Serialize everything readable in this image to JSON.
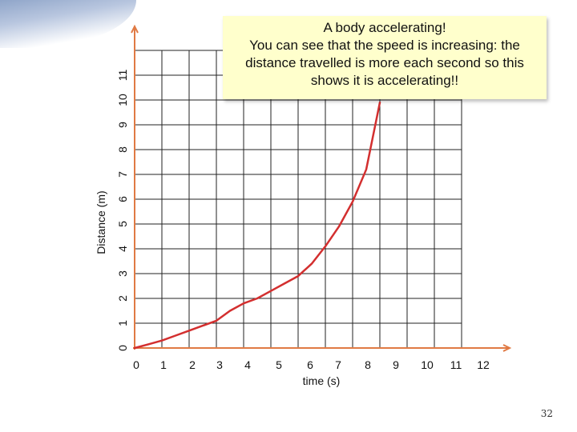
{
  "chart_data": {
    "type": "line",
    "title": "",
    "xlabel": "time (s)",
    "ylabel": "Distance (m)",
    "x_ticks": [
      "0",
      "1",
      "2",
      "3",
      "4",
      "5",
      "6",
      "7",
      "8",
      "9",
      "10",
      "11",
      "12"
    ],
    "y_ticks": [
      "0",
      "1",
      "2",
      "3",
      "4",
      "5",
      "6",
      "7",
      "8",
      "9",
      "10",
      "11"
    ],
    "xlim": [
      0,
      12
    ],
    "ylim": [
      0,
      11
    ],
    "grid": true,
    "series": [
      {
        "name": "",
        "color": "#d32f2f",
        "x": [
          0,
          0.5,
          1,
          1.5,
          2,
          2.5,
          3,
          3.5,
          4,
          4.5,
          5,
          5.5,
          6,
          6.5,
          7,
          7.5,
          8,
          8.5,
          9
        ],
        "y": [
          0,
          0.15,
          0.3,
          0.5,
          0.7,
          0.9,
          1.1,
          1.5,
          1.8,
          2.0,
          2.3,
          2.6,
          2.9,
          3.4,
          4.1,
          4.9,
          5.9,
          7.2,
          9.9
        ]
      }
    ]
  },
  "annotation": {
    "lines": [
      "A body accelerating!",
      "You can see that the speed is increasing: the",
      "distance travelled is more each second so this",
      "shows it is accelerating!!"
    ]
  },
  "slide_number": "32",
  "colors": {
    "curve": "#d32f2f",
    "axis": "#e07a44",
    "callout_bg": "#ffffcc"
  }
}
